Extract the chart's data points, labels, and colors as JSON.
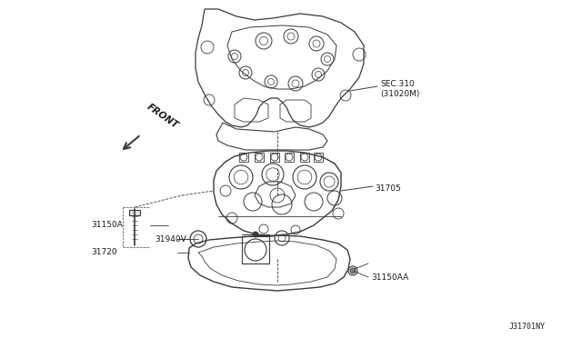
{
  "background_color": "#ffffff",
  "image_code": "J31701NY",
  "line_color": "#3a3a3a",
  "text_color": "#1a1a1a",
  "font_size_labels": 6.5,
  "font_size_code": 6,
  "labels": {
    "sec310": "SEC.310\n(31020M)",
    "part31705": "31705",
    "part31150A": "31150A",
    "part31940V": "31940V",
    "part31720": "31720",
    "part31150AA": "31150AA",
    "front_label": "FRONT",
    "image_code": "J31701NY"
  }
}
